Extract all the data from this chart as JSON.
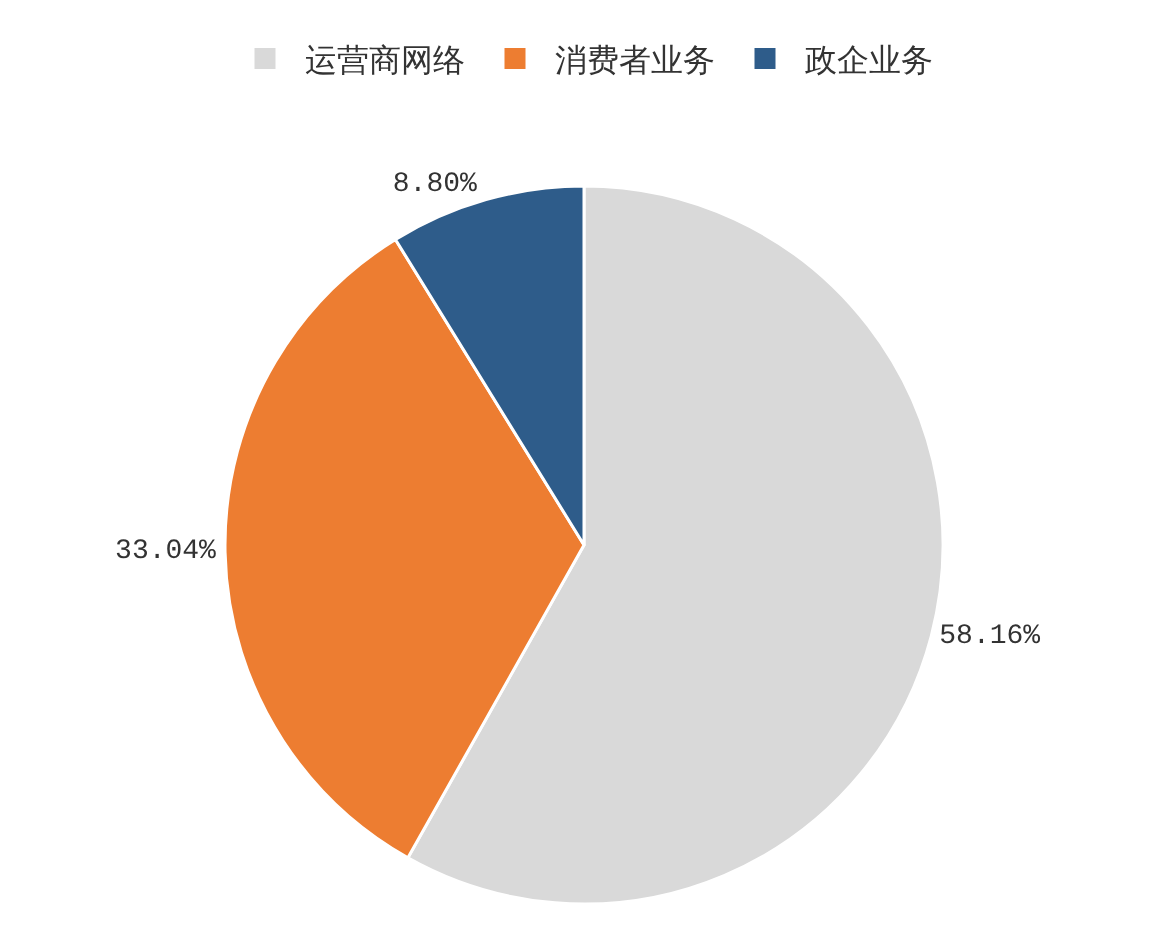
{
  "chart_data": {
    "type": "pie",
    "categories": [
      "运营商网络",
      "消费者业务",
      "政企业务"
    ],
    "values": [
      58.16,
      33.04,
      8.8
    ],
    "value_labels": [
      "58.16%",
      "33.04%",
      "8.80%"
    ],
    "colors": [
      "#d9d9d9",
      "#ed7d31",
      "#2e5c8a"
    ],
    "legend": "top"
  }
}
